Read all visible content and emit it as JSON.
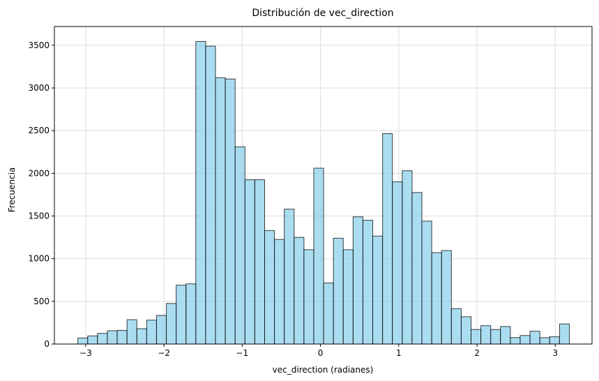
{
  "chart_data": {
    "type": "bar",
    "title": "Distribución de vec_direction",
    "xlabel": "vec_direction (radianes)",
    "ylabel": "Frecuencia",
    "xlim": [
      -3.4,
      3.47
    ],
    "ylim": [
      0,
      3720
    ],
    "xticks": [
      -3,
      -2,
      -1,
      0,
      1,
      2,
      3
    ],
    "xtick_labels": [
      "−3",
      "−2",
      "−1",
      "0",
      "1",
      "2",
      "3"
    ],
    "yticks": [
      0,
      500,
      1000,
      1500,
      2000,
      2500,
      3000,
      3500
    ],
    "ytick_labels": [
      "0",
      "500",
      "1000",
      "1500",
      "2000",
      "2500",
      "3000",
      "3500"
    ],
    "grid": true,
    "bar_color": "#87ceeb",
    "bar_edge_color": "#000000",
    "bin_start": -3.1,
    "bin_width": 0.1256,
    "values": [
      70,
      95,
      125,
      155,
      160,
      285,
      180,
      280,
      335,
      475,
      690,
      705,
      3545,
      3490,
      3120,
      3105,
      2310,
      1925,
      1925,
      1330,
      1225,
      1580,
      1250,
      1105,
      2060,
      715,
      1240,
      1105,
      1490,
      1450,
      1265,
      2465,
      1900,
      2030,
      1775,
      1440,
      1070,
      1095,
      415,
      320,
      170,
      215,
      170,
      205,
      75,
      100,
      150,
      75,
      85,
      235
    ]
  }
}
